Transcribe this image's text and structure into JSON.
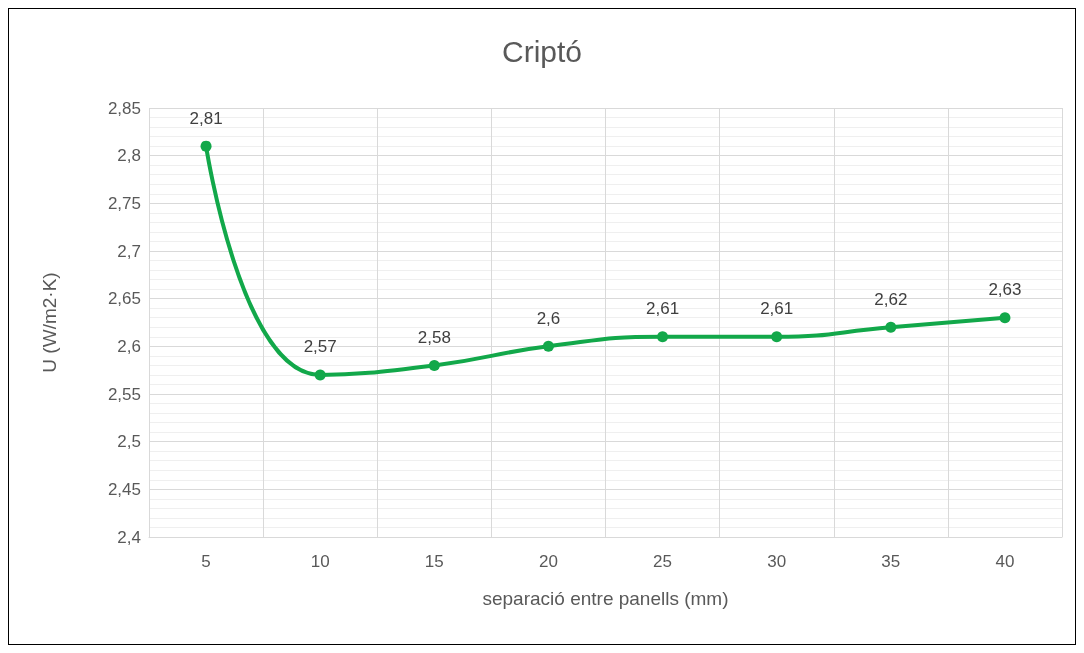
{
  "chart_data": {
    "type": "line",
    "title": "Criptó",
    "xlabel": "separació entre panells (mm)",
    "ylabel": "U (W/m2·K)",
    "categories": [
      "5",
      "10",
      "15",
      "20",
      "25",
      "30",
      "35",
      "40"
    ],
    "series": [
      {
        "color": "#12a84a",
        "values": [
          2.81,
          2.57,
          2.58,
          2.6,
          2.61,
          2.61,
          2.62,
          2.63
        ],
        "value_labels": [
          "2,81",
          "2,57",
          "2,58",
          "2,6",
          "2,61",
          "2,61",
          "2,62",
          "2,63"
        ]
      }
    ],
    "ylim": [
      2.4,
      2.85
    ],
    "yticks": [
      {
        "value": 2.4,
        "label": "2,4"
      },
      {
        "value": 2.45,
        "label": "2,45"
      },
      {
        "value": 2.5,
        "label": "2,5"
      },
      {
        "value": 2.55,
        "label": "2,55"
      },
      {
        "value": 2.6,
        "label": "2,6"
      },
      {
        "value": 2.65,
        "label": "2,65"
      },
      {
        "value": 2.7,
        "label": "2,7"
      },
      {
        "value": 2.75,
        "label": "2,75"
      },
      {
        "value": 2.8,
        "label": "2,8"
      },
      {
        "value": 2.85,
        "label": "2,85"
      }
    ],
    "grid": true,
    "marker": "circle",
    "line_style": "solid"
  }
}
